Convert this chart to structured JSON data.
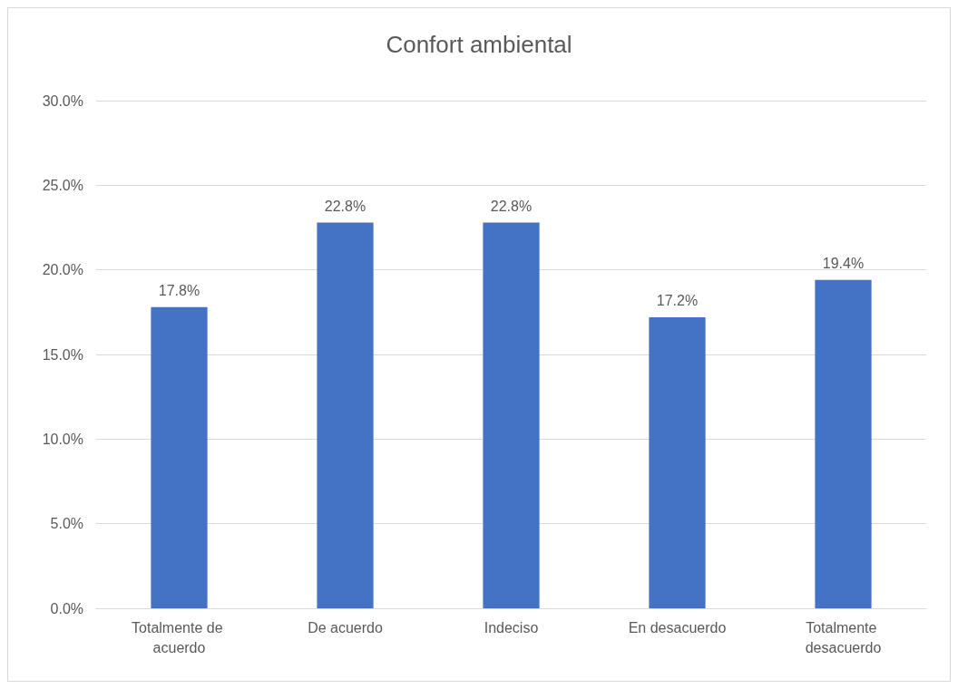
{
  "chart_data": {
    "type": "bar",
    "title": "Confort ambiental",
    "categories": [
      "Totalmente de acuerdo",
      "De acuerdo",
      "Indeciso",
      "En desacuerdo",
      "Totalmente desacuerdo"
    ],
    "values": [
      17.8,
      22.8,
      22.8,
      17.2,
      19.4
    ],
    "value_labels": [
      "17.8%",
      "22.8%",
      "22.8%",
      "17.2%",
      "19.4%"
    ],
    "color": "#4472c4",
    "ylim": [
      0,
      30
    ],
    "yticks": [
      {
        "value": 0,
        "label": "0.0%"
      },
      {
        "value": 5,
        "label": "5.0%"
      },
      {
        "value": 10,
        "label": "10.0%"
      },
      {
        "value": 15,
        "label": "15.0%"
      },
      {
        "value": 20,
        "label": "20.0%"
      },
      {
        "value": 25,
        "label": "25.0%"
      },
      {
        "value": 30,
        "label": "30.0%"
      }
    ],
    "grid": "y"
  }
}
